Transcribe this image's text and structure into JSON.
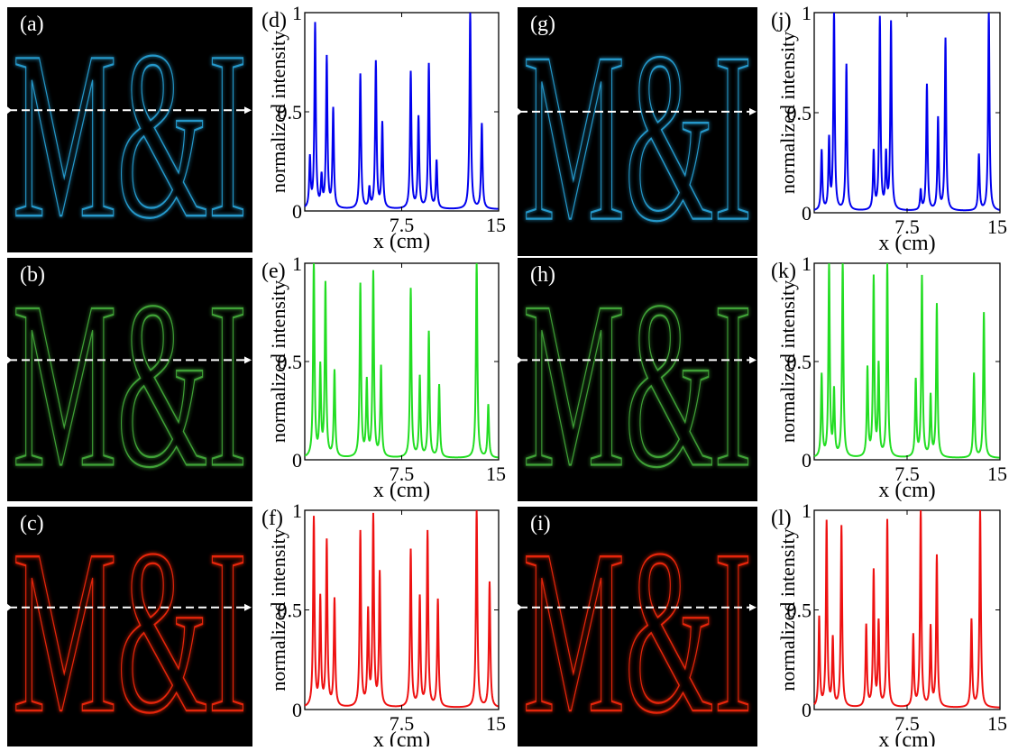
{
  "images": [
    {
      "label": "(a)",
      "text": "M&I",
      "color": "#29a9e0"
    },
    {
      "label": "(b)",
      "text": "M&I",
      "color": "#46b33c"
    },
    {
      "label": "(c)",
      "text": "M&I",
      "color": "#ff2a10"
    },
    {
      "label": "(g)",
      "text": "M&I",
      "color": "#29a9e0"
    },
    {
      "label": "(h)",
      "text": "M&I",
      "color": "#46b33c"
    },
    {
      "label": "(i)",
      "text": "M&I",
      "color": "#ff2a10"
    }
  ],
  "chart_data": [
    {
      "label": "(d)",
      "type": "line",
      "xlabel": "x (cm)",
      "ylabel": "normalized intensity",
      "xlim": [
        0,
        15
      ],
      "ylim": [
        0,
        1
      ],
      "xticks": [
        "7.5",
        "15"
      ],
      "yticks": [
        "0",
        "0.5",
        "1"
      ],
      "color": "#0000ee",
      "peaks": [
        [
          0.4,
          0.25
        ],
        [
          0.8,
          0.93
        ],
        [
          1.3,
          0.15
        ],
        [
          1.7,
          0.76
        ],
        [
          2.2,
          0.5
        ],
        [
          4.3,
          0.68
        ],
        [
          5.0,
          0.1
        ],
        [
          5.5,
          0.74
        ],
        [
          6.0,
          0.43
        ],
        [
          8.2,
          0.69
        ],
        [
          8.8,
          0.46
        ],
        [
          9.6,
          0.73
        ],
        [
          10.2,
          0.24
        ],
        [
          12.8,
          1.0
        ],
        [
          13.7,
          0.43
        ]
      ]
    },
    {
      "label": "(e)",
      "type": "line",
      "xlabel": "x (cm)",
      "ylabel": "normalized intensity",
      "xlim": [
        0,
        15
      ],
      "ylim": [
        0,
        1
      ],
      "xticks": [
        "7.5",
        "15"
      ],
      "yticks": [
        "0",
        "0.5",
        "1"
      ],
      "color": "#22dd22",
      "peaks": [
        [
          0.7,
          1.0
        ],
        [
          1.2,
          0.45
        ],
        [
          1.6,
          0.88
        ],
        [
          2.3,
          0.44
        ],
        [
          4.3,
          0.88
        ],
        [
          4.8,
          0.38
        ],
        [
          5.3,
          0.94
        ],
        [
          5.9,
          0.46
        ],
        [
          8.2,
          0.86
        ],
        [
          8.9,
          0.41
        ],
        [
          9.6,
          0.64
        ],
        [
          10.4,
          0.37
        ],
        [
          13.3,
          1.0
        ],
        [
          14.2,
          0.27
        ]
      ]
    },
    {
      "label": "(f)",
      "type": "line",
      "xlabel": "x (cm)",
      "ylabel": "normalized intensity",
      "xlim": [
        0,
        15
      ],
      "ylim": [
        0,
        1
      ],
      "xticks": [
        "7.5",
        "15"
      ],
      "yticks": [
        "0",
        "0.5",
        "1"
      ],
      "color": "#ee1111",
      "peaks": [
        [
          0.7,
          0.95
        ],
        [
          1.2,
          0.54
        ],
        [
          1.7,
          0.83
        ],
        [
          2.3,
          0.54
        ],
        [
          4.3,
          0.88
        ],
        [
          4.9,
          0.47
        ],
        [
          5.3,
          0.95
        ],
        [
          5.8,
          0.67
        ],
        [
          8.2,
          0.79
        ],
        [
          8.9,
          0.55
        ],
        [
          9.5,
          0.88
        ],
        [
          10.3,
          0.54
        ],
        [
          13.3,
          1.0
        ],
        [
          14.3,
          0.63
        ]
      ]
    },
    {
      "label": "(j)",
      "type": "line",
      "xlabel": "x (cm)",
      "ylabel": "normalized intensity",
      "xlim": [
        0,
        15
      ],
      "ylim": [
        0,
        1
      ],
      "xticks": [
        "7.5",
        "15"
      ],
      "yticks": [
        "0",
        "0.5",
        "1"
      ],
      "color": "#0000ee",
      "peaks": [
        [
          0.6,
          0.3
        ],
        [
          1.2,
          0.35
        ],
        [
          1.6,
          1.0
        ],
        [
          2.6,
          0.73
        ],
        [
          4.8,
          0.29
        ],
        [
          5.3,
          0.96
        ],
        [
          5.8,
          0.27
        ],
        [
          6.2,
          0.94
        ],
        [
          8.6,
          0.1
        ],
        [
          9.1,
          0.63
        ],
        [
          10.0,
          0.46
        ],
        [
          10.6,
          0.86
        ],
        [
          13.3,
          0.28
        ],
        [
          14.1,
          1.0
        ]
      ]
    },
    {
      "label": "(k)",
      "type": "line",
      "xlabel": "x (cm)",
      "ylabel": "normalized intensity",
      "xlim": [
        0,
        15
      ],
      "ylim": [
        0,
        1
      ],
      "xticks": [
        "7.5",
        "15"
      ],
      "yticks": [
        "0",
        "0.5",
        "1"
      ],
      "color": "#22dd22",
      "peaks": [
        [
          0.6,
          0.42
        ],
        [
          1.2,
          0.99
        ],
        [
          1.6,
          0.33
        ],
        [
          2.3,
          1.0
        ],
        [
          4.3,
          0.45
        ],
        [
          4.8,
          0.91
        ],
        [
          5.2,
          0.46
        ],
        [
          5.9,
          0.99
        ],
        [
          8.2,
          0.39
        ],
        [
          8.7,
          0.92
        ],
        [
          9.4,
          0.31
        ],
        [
          9.9,
          0.78
        ],
        [
          12.9,
          0.43
        ],
        [
          13.7,
          0.74
        ]
      ]
    },
    {
      "label": "(l)",
      "type": "line",
      "xlabel": "x (cm)",
      "ylabel": "normalized intensity",
      "xlim": [
        0,
        15
      ],
      "ylim": [
        0,
        1
      ],
      "xticks": [
        "7.5",
        "15"
      ],
      "yticks": [
        "0",
        "0.5",
        "1"
      ],
      "color": "#ee1111",
      "peaks": [
        [
          0.4,
          0.45
        ],
        [
          1.0,
          0.93
        ],
        [
          1.5,
          0.34
        ],
        [
          2.2,
          0.91
        ],
        [
          4.2,
          0.41
        ],
        [
          4.8,
          0.68
        ],
        [
          5.2,
          0.42
        ],
        [
          5.9,
          0.94
        ],
        [
          8.0,
          0.36
        ],
        [
          8.6,
          1.0
        ],
        [
          9.4,
          0.4
        ],
        [
          9.9,
          0.76
        ],
        [
          12.7,
          0.44
        ],
        [
          13.4,
          0.99
        ]
      ]
    }
  ]
}
